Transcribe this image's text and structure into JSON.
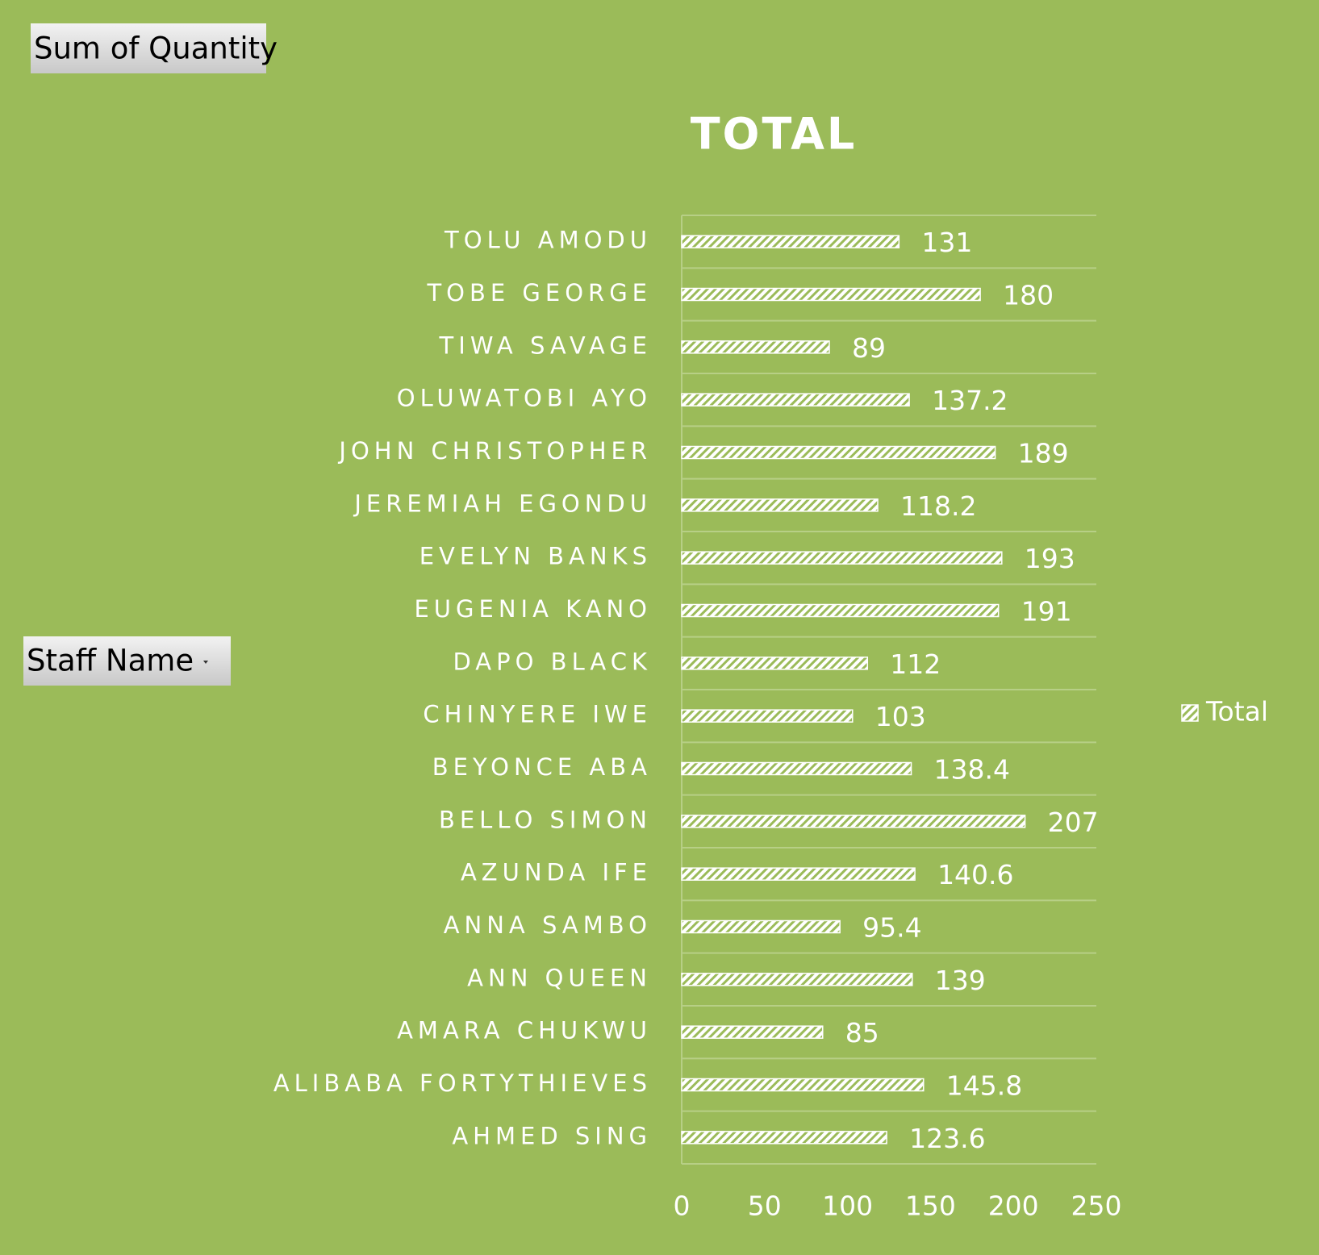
{
  "field_buttons": {
    "values": "Sum of Quantity",
    "rows": "Staff Name"
  },
  "chart_data": {
    "type": "bar",
    "orientation": "horizontal",
    "title": "TOTAL",
    "categories": [
      "TOLU AMODU",
      "TOBE GEORGE",
      "TIWA SAVAGE",
      "OLUWATOBI AYO",
      "JOHN CHRISTOPHER",
      "JEREMIAH EGONDU",
      "EVELYN BANKS",
      "EUGENIA KANO",
      "DAPO BLACK",
      "CHINYERE IWE",
      "BEYONCE ABA",
      "BELLO SIMON",
      "AZUNDA IFE",
      "ANNA SAMBO",
      "ANN QUEEN",
      "AMARA CHUKWU",
      "ALIBABA FORTYTHIEVES",
      "AHMED SING"
    ],
    "series": [
      {
        "name": "Total",
        "color": "#ffffff",
        "values": [
          131,
          180,
          89,
          137.2,
          189,
          118.2,
          193,
          191,
          112,
          103,
          138.4,
          207,
          140.6,
          95.4,
          139,
          85,
          145.8,
          123.6
        ]
      }
    ],
    "xlim": [
      0,
      250
    ],
    "xticks": [
      0,
      50,
      100,
      150,
      200,
      250
    ],
    "legend": "right"
  }
}
